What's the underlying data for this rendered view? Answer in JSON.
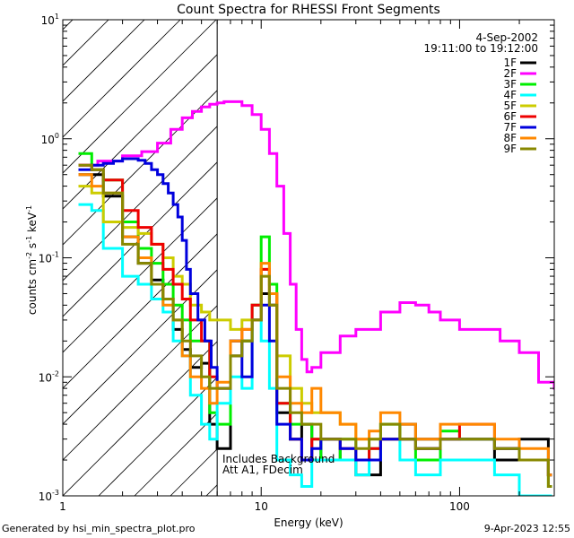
{
  "footer": {
    "left": "Generated by hsi_min_spectra_plot.pro",
    "right": "9-Apr-2023 12:55"
  },
  "chart_data": {
    "type": "line",
    "title": "Count Spectra for RHESSI Front Segments",
    "xlabel": "Energy (keV)",
    "ylabel_parts": [
      "counts cm",
      "-2",
      " s",
      "-1",
      " keV",
      "-1"
    ],
    "xscale": "log",
    "yscale": "log",
    "xlim": [
      1,
      300
    ],
    "ylim": [
      0.001,
      10
    ],
    "x_ticks": [
      {
        "value": 1,
        "label": "1"
      },
      {
        "value": 10,
        "label": "10"
      },
      {
        "value": 100,
        "label": "100"
      }
    ],
    "y_ticks": [
      {
        "value": 0.001,
        "base": "10",
        "exp": "-3"
      },
      {
        "value": 0.01,
        "base": "10",
        "exp": "-2"
      },
      {
        "value": 0.1,
        "base": "10",
        "exp": "-1"
      },
      {
        "value": 1,
        "base": "10",
        "exp": "0"
      },
      {
        "value": 10,
        "base": "10",
        "exp": "1"
      }
    ],
    "date": "4-Sep-2002",
    "time_range": "19:11:00 to 19:12:00",
    "hatched_region_max_keV": 6,
    "annotations": [
      "Includes Background",
      "Att A1, FDecim"
    ],
    "legend_position": "top-right",
    "series": [
      {
        "name": "1F",
        "color": "#000000",
        "x": [
          1.2,
          1.4,
          1.6,
          2.0,
          2.4,
          2.8,
          3.2,
          3.6,
          4.0,
          4.4,
          5.0,
          5.5,
          6.0,
          7.0,
          8.0,
          9.0,
          10.0,
          11.0,
          12.0,
          14.0,
          16.0,
          18.0,
          20.0,
          25.0,
          30.0,
          35.0,
          40.0,
          50.0,
          60.0,
          80.0,
          100.0,
          150.0,
          200.0,
          280.0
        ],
        "y": [
          0.5,
          0.5,
          0.33,
          0.15,
          0.09,
          0.065,
          0.045,
          0.025,
          0.017,
          0.012,
          0.013,
          0.004,
          0.0025,
          0.015,
          0.02,
          0.03,
          0.05,
          0.04,
          0.005,
          0.003,
          0.004,
          0.002,
          0.003,
          0.002,
          0.0015,
          0.0015,
          0.003,
          0.004,
          0.003,
          0.003,
          0.003,
          0.002,
          0.003,
          0.0015
        ]
      },
      {
        "name": "2F",
        "color": "#ff00ff",
        "x": [
          1.2,
          1.5,
          2.0,
          2.5,
          3.0,
          3.5,
          4.0,
          4.5,
          5.0,
          5.5,
          6.0,
          6.5,
          7.0,
          8.0,
          9.0,
          10.0,
          11.0,
          12.0,
          13.0,
          14.0,
          15.0,
          16.0,
          17.0,
          18.0,
          20.0,
          25.0,
          30.0,
          40.0,
          50.0,
          60.0,
          70.0,
          80.0,
          100.0,
          130.0,
          160.0,
          200.0,
          250.0,
          300.0
        ],
        "y": [
          0.6,
          0.65,
          0.72,
          0.78,
          0.92,
          1.2,
          1.5,
          1.7,
          1.85,
          1.95,
          2.0,
          2.05,
          2.05,
          1.9,
          1.6,
          1.2,
          0.75,
          0.4,
          0.16,
          0.06,
          0.025,
          0.014,
          0.011,
          0.012,
          0.016,
          0.022,
          0.025,
          0.035,
          0.042,
          0.04,
          0.035,
          0.03,
          0.025,
          0.025,
          0.02,
          0.016,
          0.009,
          0.008
        ]
      },
      {
        "name": "3F",
        "color": "#00ee00",
        "x": [
          1.2,
          1.4,
          1.6,
          2.0,
          2.4,
          2.8,
          3.2,
          3.6,
          4.0,
          4.4,
          5.0,
          5.5,
          6.0,
          7.0,
          8.0,
          9.0,
          10.0,
          11.0,
          12.0,
          14.0,
          16.0,
          18.0,
          20.0,
          25.0,
          30.0,
          35.0,
          40.0,
          50.0,
          60.0,
          80.0,
          100.0,
          150.0,
          200.0,
          280.0
        ],
        "y": [
          0.75,
          0.55,
          0.45,
          0.2,
          0.12,
          0.09,
          0.06,
          0.04,
          0.03,
          0.02,
          0.02,
          0.005,
          0.004,
          0.02,
          0.02,
          0.04,
          0.15,
          0.06,
          0.006,
          0.004,
          0.004,
          0.003,
          0.002,
          0.003,
          0.002,
          0.0025,
          0.004,
          0.003,
          0.002,
          0.0035,
          0.003,
          0.0025,
          0.002,
          0.0012
        ]
      },
      {
        "name": "4F",
        "color": "#00ffff",
        "x": [
          1.2,
          1.4,
          1.6,
          2.0,
          2.4,
          2.8,
          3.2,
          3.6,
          4.0,
          4.4,
          5.0,
          5.5,
          6.0,
          7.0,
          8.0,
          9.0,
          10.0,
          11.0,
          12.0,
          14.0,
          16.0,
          18.0,
          20.0,
          25.0,
          30.0,
          35.0,
          40.0,
          50.0,
          60.0,
          80.0,
          100.0,
          150.0,
          200.0,
          280.0
        ],
        "y": [
          0.28,
          0.25,
          0.12,
          0.07,
          0.06,
          0.045,
          0.035,
          0.02,
          0.015,
          0.007,
          0.004,
          0.003,
          0.006,
          0.01,
          0.008,
          0.04,
          0.02,
          0.008,
          0.002,
          0.0015,
          0.0012,
          0.002,
          0.002,
          0.002,
          0.0015,
          0.002,
          0.003,
          0.002,
          0.0015,
          0.002,
          0.002,
          0.0015,
          0.001,
          0.001
        ]
      },
      {
        "name": "5F",
        "color": "#cccc00",
        "x": [
          1.2,
          1.4,
          1.6,
          2.0,
          2.4,
          2.8,
          3.2,
          3.6,
          4.0,
          4.4,
          5.0,
          5.5,
          6.0,
          7.0,
          8.0,
          9.0,
          10.0,
          11.0,
          12.0,
          14.0,
          16.0,
          18.0,
          20.0,
          25.0,
          30.0,
          35.0,
          40.0,
          50.0,
          60.0,
          80.0,
          100.0,
          150.0,
          200.0,
          280.0
        ],
        "y": [
          0.4,
          0.35,
          0.2,
          0.18,
          0.16,
          0.13,
          0.1,
          0.07,
          0.06,
          0.04,
          0.035,
          0.03,
          0.03,
          0.025,
          0.03,
          0.04,
          0.08,
          0.05,
          0.015,
          0.008,
          0.006,
          0.005,
          0.005,
          0.004,
          0.003,
          0.003,
          0.003,
          0.003,
          0.0025,
          0.003,
          0.003,
          0.0025,
          0.002,
          0.0015
        ]
      },
      {
        "name": "6F",
        "color": "#ee0000",
        "x": [
          1.2,
          1.4,
          1.6,
          2.0,
          2.4,
          2.8,
          3.2,
          3.6,
          4.0,
          4.4,
          5.0,
          5.5,
          6.0,
          7.0,
          8.0,
          9.0,
          10.0,
          11.0,
          12.0,
          14.0,
          16.0,
          18.0,
          20.0,
          25.0,
          30.0,
          35.0,
          40.0,
          50.0,
          60.0,
          80.0,
          100.0,
          150.0,
          200.0,
          280.0
        ],
        "y": [
          0.6,
          0.55,
          0.45,
          0.25,
          0.18,
          0.13,
          0.08,
          0.06,
          0.045,
          0.03,
          0.02,
          0.01,
          0.008,
          0.02,
          0.025,
          0.04,
          0.08,
          0.05,
          0.006,
          0.003,
          0.002,
          0.003,
          0.003,
          0.0025,
          0.002,
          0.0025,
          0.003,
          0.003,
          0.0025,
          0.003,
          0.004,
          0.0025,
          0.002,
          0.0015
        ]
      },
      {
        "name": "7F",
        "color": "#0000dd",
        "x": [
          1.2,
          1.4,
          1.6,
          1.8,
          2.0,
          2.2,
          2.4,
          2.6,
          2.8,
          3.0,
          3.2,
          3.4,
          3.6,
          3.8,
          4.0,
          4.2,
          4.4,
          4.8,
          5.2,
          5.6,
          6.0,
          7.0,
          8.0,
          9.0,
          10.0,
          11.0,
          12.0,
          14.0,
          16.0,
          18.0,
          20.0,
          25.0,
          30.0,
          35.0,
          40.0,
          50.0,
          60.0,
          80.0,
          100.0,
          150.0,
          200.0,
          280.0
        ],
        "y": [
          0.55,
          0.6,
          0.62,
          0.65,
          0.68,
          0.68,
          0.66,
          0.62,
          0.55,
          0.5,
          0.42,
          0.35,
          0.28,
          0.22,
          0.14,
          0.08,
          0.05,
          0.03,
          0.02,
          0.012,
          0.008,
          0.02,
          0.01,
          0.03,
          0.04,
          0.02,
          0.004,
          0.003,
          0.002,
          0.0025,
          0.003,
          0.0025,
          0.002,
          0.002,
          0.003,
          0.003,
          0.0025,
          0.003,
          0.003,
          0.0025,
          0.002,
          0.0015
        ]
      },
      {
        "name": "8F",
        "color": "#ff8800",
        "x": [
          1.2,
          1.4,
          1.6,
          2.0,
          2.4,
          2.8,
          3.2,
          3.6,
          4.0,
          4.4,
          5.0,
          5.5,
          6.0,
          7.0,
          8.0,
          9.0,
          10.0,
          11.0,
          12.0,
          14.0,
          16.0,
          18.0,
          20.0,
          25.0,
          30.0,
          35.0,
          40.0,
          50.0,
          60.0,
          80.0,
          100.0,
          150.0,
          200.0,
          280.0
        ],
        "y": [
          0.5,
          0.4,
          0.35,
          0.15,
          0.1,
          0.06,
          0.04,
          0.03,
          0.015,
          0.01,
          0.008,
          0.006,
          0.009,
          0.02,
          0.025,
          0.03,
          0.09,
          0.05,
          0.01,
          0.006,
          0.005,
          0.008,
          0.005,
          0.004,
          0.003,
          0.0035,
          0.005,
          0.004,
          0.003,
          0.004,
          0.004,
          0.003,
          0.0025,
          0.0015
        ]
      },
      {
        "name": "9F",
        "color": "#888800",
        "x": [
          1.2,
          1.4,
          1.6,
          2.0,
          2.4,
          2.8,
          3.2,
          3.6,
          4.0,
          4.4,
          5.0,
          5.5,
          6.0,
          7.0,
          8.0,
          9.0,
          10.0,
          11.0,
          12.0,
          14.0,
          16.0,
          18.0,
          20.0,
          25.0,
          30.0,
          35.0,
          40.0,
          50.0,
          60.0,
          80.0,
          100.0,
          150.0,
          200.0,
          280.0
        ],
        "y": [
          0.6,
          0.55,
          0.35,
          0.13,
          0.09,
          0.06,
          0.045,
          0.03,
          0.02,
          0.015,
          0.01,
          0.008,
          0.008,
          0.015,
          0.02,
          0.03,
          0.07,
          0.04,
          0.008,
          0.005,
          0.004,
          0.004,
          0.003,
          0.003,
          0.0025,
          0.003,
          0.004,
          0.003,
          0.0025,
          0.003,
          0.003,
          0.0025,
          0.002,
          0.0012
        ]
      }
    ]
  }
}
